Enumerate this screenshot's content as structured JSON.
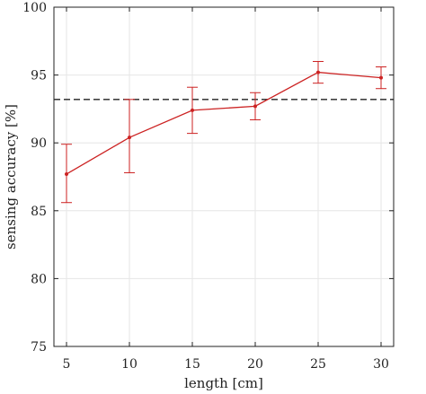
{
  "chart_data": {
    "type": "line",
    "title": "",
    "xlabel": "length [cm]",
    "ylabel": "sensing accuracy [%]",
    "xlim": [
      4,
      31
    ],
    "ylim": [
      75,
      100
    ],
    "xticks": [
      5,
      10,
      15,
      20,
      25,
      30
    ],
    "yticks": [
      75,
      80,
      85,
      90,
      95,
      100
    ],
    "grid": true,
    "series": [
      {
        "x": [
          5,
          10,
          15,
          20,
          25,
          30
        ],
        "y": [
          87.7,
          90.4,
          92.4,
          92.7,
          95.2,
          94.8
        ],
        "error_low": [
          85.6,
          87.8,
          90.7,
          91.7,
          94.4,
          94.0
        ],
        "error_high": [
          89.9,
          93.2,
          94.1,
          93.7,
          96.0,
          95.6
        ],
        "color": "#cc2222"
      }
    ],
    "reference_line": {
      "y": 93.2,
      "style": "dashed",
      "color": "#222222"
    }
  }
}
